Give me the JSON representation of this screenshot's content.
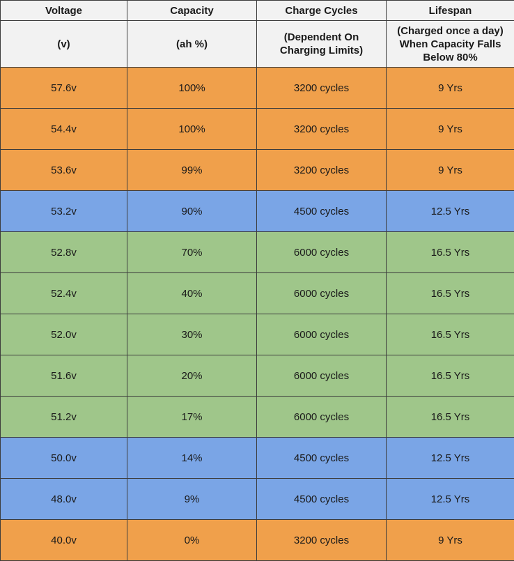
{
  "header": {
    "columns": [
      "Voltage",
      "Capacity",
      "Charge Cycles",
      "Lifespan"
    ],
    "subtitles": [
      "(v)",
      "(ah %)",
      "(Dependent On Charging Limits)",
      "(Charged once a day) When Capacity Falls Below 80%"
    ]
  },
  "colors": {
    "orange": "#f0a04b",
    "blue": "#7aa5e6",
    "green": "#9fc68a",
    "header_bg": "#f2f2f2",
    "border": "#3c3c3c"
  },
  "rows": [
    {
      "voltage": "57.6v",
      "capacity": "100%",
      "cycles": "3200 cycles",
      "lifespan": "9 Yrs",
      "level": "orange"
    },
    {
      "voltage": "54.4v",
      "capacity": "100%",
      "cycles": "3200 cycles",
      "lifespan": "9 Yrs",
      "level": "orange"
    },
    {
      "voltage": "53.6v",
      "capacity": "99%",
      "cycles": "3200 cycles",
      "lifespan": "9 Yrs",
      "level": "orange"
    },
    {
      "voltage": "53.2v",
      "capacity": "90%",
      "cycles": "4500 cycles",
      "lifespan": "12.5 Yrs",
      "level": "blue"
    },
    {
      "voltage": "52.8v",
      "capacity": "70%",
      "cycles": "6000 cycles",
      "lifespan": "16.5 Yrs",
      "level": "green"
    },
    {
      "voltage": "52.4v",
      "capacity": "40%",
      "cycles": "6000 cycles",
      "lifespan": "16.5 Yrs",
      "level": "green"
    },
    {
      "voltage": "52.0v",
      "capacity": "30%",
      "cycles": "6000 cycles",
      "lifespan": "16.5 Yrs",
      "level": "green"
    },
    {
      "voltage": "51.6v",
      "capacity": "20%",
      "cycles": "6000 cycles",
      "lifespan": "16.5 Yrs",
      "level": "green"
    },
    {
      "voltage": "51.2v",
      "capacity": "17%",
      "cycles": "6000 cycles",
      "lifespan": "16.5 Yrs",
      "level": "green"
    },
    {
      "voltage": "50.0v",
      "capacity": "14%",
      "cycles": "4500 cycles",
      "lifespan": "12.5 Yrs",
      "level": "blue"
    },
    {
      "voltage": "48.0v",
      "capacity": "9%",
      "cycles": "4500 cycles",
      "lifespan": "12.5 Yrs",
      "level": "blue"
    },
    {
      "voltage": "40.0v",
      "capacity": "0%",
      "cycles": "3200 cycles",
      "lifespan": "9 Yrs",
      "level": "orange"
    }
  ]
}
